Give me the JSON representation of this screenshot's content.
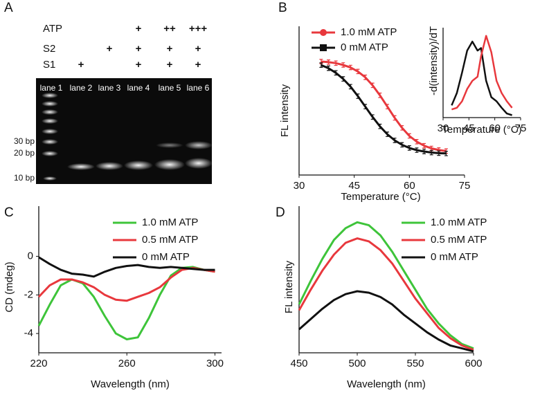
{
  "gel": {
    "panel_label": "A",
    "rows": [
      {
        "label": "ATP",
        "signs": [
          null,
          null,
          null,
          "+",
          "++",
          "+++"
        ]
      },
      {
        "label": "S2",
        "signs": [
          null,
          null,
          "+",
          "+",
          "+",
          "+"
        ]
      },
      {
        "label": "S1",
        "signs": [
          null,
          "+",
          null,
          "+",
          "+",
          "+"
        ]
      }
    ],
    "lanes": [
      "lane 1",
      "lane 2",
      "lane 3",
      "lane 4",
      "lane 5",
      "lane 6"
    ],
    "markers": [
      "30 bp",
      "20 bp",
      "10 bp"
    ]
  },
  "chart_data": [
    {
      "type": "line",
      "panel_label": "B",
      "xlabel": "Temperature (°C)",
      "ylabel": "FL intensity",
      "x": [
        36,
        38,
        40,
        42,
        44,
        46,
        48,
        50,
        52,
        54,
        56,
        58,
        60,
        62,
        64,
        66,
        68,
        70
      ],
      "series": [
        {
          "name": "1.0 mM ATP",
          "color": "#e8383d",
          "marker": "circle",
          "values": [
            0.763,
            0.759,
            0.752,
            0.74,
            0.723,
            0.696,
            0.657,
            0.603,
            0.536,
            0.46,
            0.384,
            0.317,
            0.263,
            0.224,
            0.197,
            0.179,
            0.168,
            0.161
          ],
          "errors": [
            0.015,
            0.015,
            0.015,
            0.015,
            0.015,
            0.015,
            0.015,
            0.015,
            0.015,
            0.015,
            0.015,
            0.015,
            0.015,
            0.015,
            0.015,
            0.015,
            0.015,
            0.015
          ]
        },
        {
          "name": "0 mM ATP",
          "color": "#111111",
          "marker": "square",
          "values": [
            0.739,
            0.718,
            0.687,
            0.646,
            0.594,
            0.53,
            0.46,
            0.39,
            0.327,
            0.274,
            0.233,
            0.203,
            0.182,
            0.167,
            0.158,
            0.151,
            0.147,
            0.145
          ],
          "errors": [
            0.015,
            0.015,
            0.015,
            0.015,
            0.015,
            0.015,
            0.015,
            0.015,
            0.015,
            0.015,
            0.015,
            0.015,
            0.015,
            0.015,
            0.015,
            0.015,
            0.015,
            0.015
          ]
        }
      ],
      "xlim": [
        30,
        75
      ],
      "xticks": [
        30,
        45,
        60,
        75
      ],
      "ylim": [
        0,
        1
      ],
      "legend": "top-left"
    },
    {
      "type": "line",
      "xlabel": "Temperature (°C)",
      "ylabel": "-d(intensity)/dT",
      "x": [
        35,
        38,
        41,
        44,
        47,
        50,
        52,
        55,
        58,
        61,
        64,
        67,
        70
      ],
      "series": [
        {
          "color": "#111111",
          "values": [
            0.15,
            0.3,
            0.55,
            0.82,
            0.93,
            0.82,
            0.85,
            0.45,
            0.25,
            0.2,
            0.12,
            0.05,
            0.03
          ]
        },
        {
          "color": "#e8383d",
          "values": [
            0.1,
            0.12,
            0.2,
            0.35,
            0.45,
            0.5,
            0.75,
            1.0,
            0.8,
            0.45,
            0.3,
            0.2,
            0.12
          ]
        }
      ],
      "xlim": [
        30,
        75
      ],
      "xticks": [
        30,
        45,
        60,
        75
      ],
      "ylim": [
        0,
        1.1
      ]
    },
    {
      "type": "line",
      "panel_label": "C",
      "xlabel": "Wavelength (nm)",
      "ylabel": "CD (mdeg)",
      "x": [
        220,
        225,
        230,
        235,
        240,
        245,
        250,
        255,
        260,
        265,
        270,
        275,
        280,
        285,
        290,
        295,
        300
      ],
      "series": [
        {
          "name": "1.0 mM ATP",
          "color": "#3ec43a",
          "values": [
            -3.6,
            -2.5,
            -1.5,
            -1.2,
            -1.4,
            -2.1,
            -3.1,
            -4.0,
            -4.3,
            -4.2,
            -3.2,
            -2.0,
            -1.0,
            -0.6,
            -0.55,
            -0.7,
            -0.8
          ]
        },
        {
          "name": "0.5 mM ATP",
          "color": "#e8383d",
          "values": [
            -2.1,
            -1.5,
            -1.2,
            -1.2,
            -1.35,
            -1.6,
            -2.0,
            -2.25,
            -2.3,
            -2.1,
            -1.9,
            -1.6,
            -1.1,
            -0.7,
            -0.6,
            -0.7,
            -0.8
          ]
        },
        {
          "name": "0 mM ATP",
          "color": "#111111",
          "values": [
            -0.05,
            -0.4,
            -0.7,
            -0.9,
            -0.95,
            -1.05,
            -0.8,
            -0.6,
            -0.5,
            -0.45,
            -0.55,
            -0.6,
            -0.55,
            -0.6,
            -0.65,
            -0.7,
            -0.7
          ]
        }
      ],
      "xlim": [
        220,
        303
      ],
      "xticks": [
        220,
        260,
        300
      ],
      "ylim": [
        -5,
        2.6
      ],
      "yticks": [
        -4,
        -2,
        0
      ],
      "legend": "top-right"
    },
    {
      "type": "line",
      "panel_label": "D",
      "xlabel": "Wavelength (nm)",
      "ylabel": "FL intensity",
      "x": [
        450,
        460,
        470,
        480,
        490,
        500,
        510,
        520,
        530,
        540,
        550,
        560,
        570,
        580,
        590,
        600
      ],
      "series": [
        {
          "name": "1.0 mM ATP",
          "color": "#3ec43a",
          "values": [
            0.33,
            0.49,
            0.64,
            0.77,
            0.85,
            0.89,
            0.87,
            0.8,
            0.69,
            0.56,
            0.43,
            0.3,
            0.2,
            0.12,
            0.06,
            0.03
          ]
        },
        {
          "name": "0.5 mM ATP",
          "color": "#e8383d",
          "values": [
            0.29,
            0.43,
            0.56,
            0.67,
            0.75,
            0.78,
            0.76,
            0.7,
            0.61,
            0.49,
            0.37,
            0.27,
            0.17,
            0.1,
            0.05,
            0.02
          ]
        },
        {
          "name": "0 mM ATP",
          "color": "#111111",
          "values": [
            0.16,
            0.23,
            0.3,
            0.36,
            0.4,
            0.42,
            0.41,
            0.38,
            0.33,
            0.26,
            0.2,
            0.14,
            0.09,
            0.05,
            0.03,
            0.01
          ]
        }
      ],
      "xlim": [
        450,
        600
      ],
      "xticks": [
        450,
        500,
        550,
        600
      ],
      "ylim": [
        0,
        1
      ],
      "legend": "top-right"
    }
  ]
}
